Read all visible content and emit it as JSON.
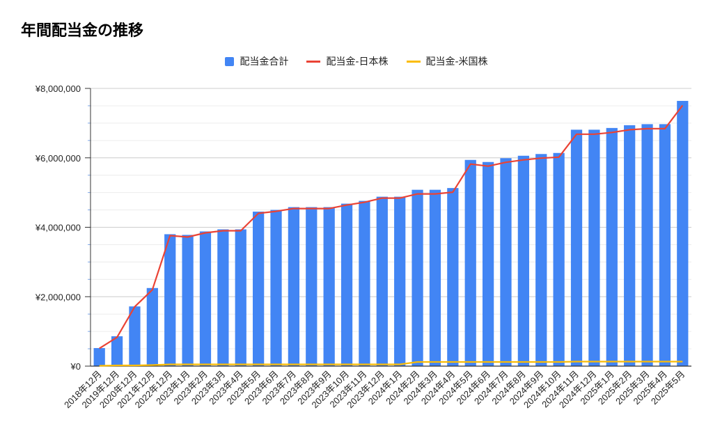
{
  "chart_data": {
    "type": "bar",
    "title": "年間配当金の推移",
    "categories": [
      "2018年12月",
      "2019年12月",
      "2020年12月",
      "2021年12月",
      "2022年12月",
      "2023年1月",
      "2023年2月",
      "2023年3月",
      "2023年4月",
      "2023年5月",
      "2023年6月",
      "2023年7月",
      "2023年8月",
      "2023年9月",
      "2023年10月",
      "2023年11月",
      "2023年12月",
      "2024年1月",
      "2024年2月",
      "2024年3月",
      "2024年4月",
      "2024年5月",
      "2024年6月",
      "2024年7月",
      "2024年8月",
      "2024年9月",
      "2024年10月",
      "2024年11月",
      "2024年12月",
      "2025年1月",
      "2025年2月",
      "2025年3月",
      "2025年4月",
      "2025年5月"
    ],
    "series": [
      {
        "name": "配当金合計",
        "kind": "bar",
        "color": "#4285f4",
        "values": [
          520000,
          860000,
          1720000,
          2250000,
          3800000,
          3780000,
          3880000,
          3940000,
          3940000,
          4450000,
          4500000,
          4580000,
          4580000,
          4580000,
          4680000,
          4760000,
          4880000,
          4880000,
          5080000,
          5080000,
          5130000,
          5940000,
          5880000,
          5990000,
          6060000,
          6110000,
          6140000,
          6810000,
          6810000,
          6860000,
          6940000,
          6970000,
          6970000,
          7640000
        ]
      },
      {
        "name": "配当金-日本株",
        "kind": "line",
        "color": "#ea4335",
        "values": [
          510000,
          830000,
          1710000,
          2200000,
          3760000,
          3720000,
          3840000,
          3900000,
          3900000,
          4400000,
          4460000,
          4540000,
          4540000,
          4540000,
          4640000,
          4720000,
          4840000,
          4840000,
          4960000,
          4960000,
          5010000,
          5820000,
          5760000,
          5870000,
          5940000,
          5990000,
          6020000,
          6680000,
          6680000,
          6730000,
          6810000,
          6840000,
          6840000,
          7510000
        ]
      },
      {
        "name": "配当金-米国株",
        "kind": "line",
        "color": "#fbbc04",
        "values": [
          10000,
          20000,
          20000,
          30000,
          50000,
          50000,
          50000,
          50000,
          50000,
          50000,
          50000,
          50000,
          50000,
          50000,
          50000,
          50000,
          50000,
          50000,
          120000,
          120000,
          120000,
          120000,
          120000,
          120000,
          120000,
          120000,
          120000,
          130000,
          130000,
          130000,
          130000,
          130000,
          130000,
          130000
        ]
      }
    ],
    "y_ticks": [
      "¥0",
      "¥2,000,000",
      "¥4,000,000",
      "¥6,000,000",
      "¥8,000,000"
    ],
    "ylim": [
      0,
      8000000
    ],
    "grid": true,
    "legend_position": "top"
  }
}
